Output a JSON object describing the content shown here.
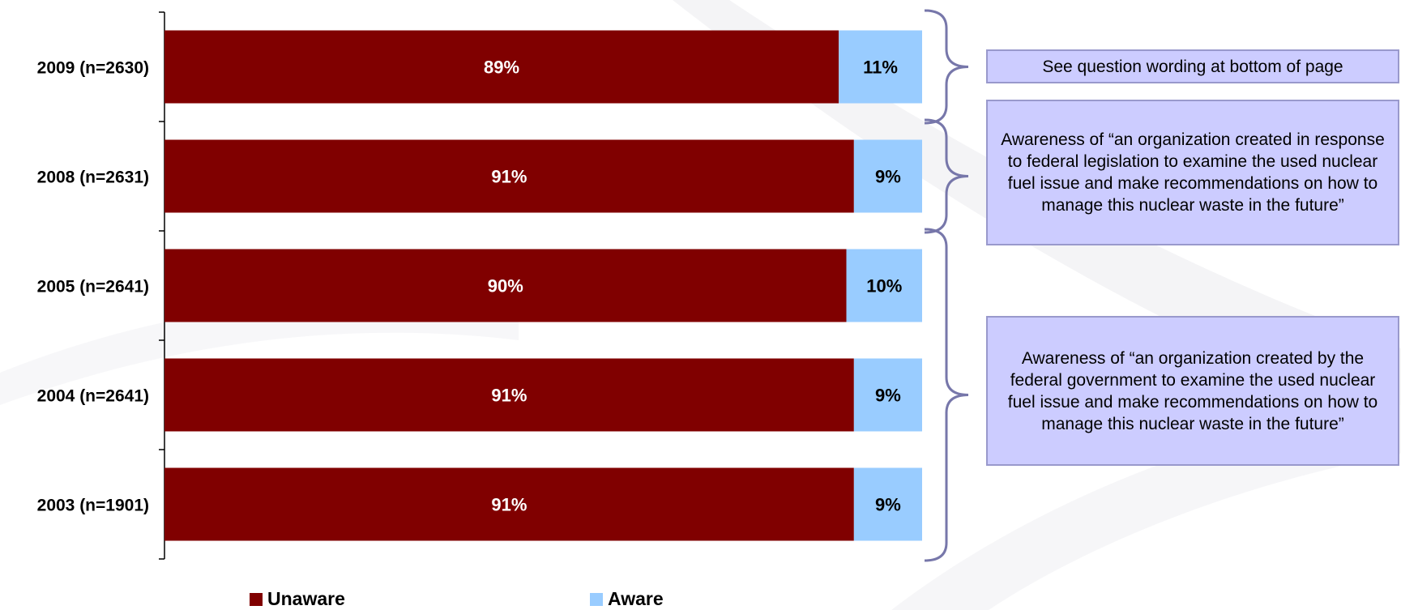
{
  "colors": {
    "unaware": "#800000",
    "aware": "#99ccff",
    "bracket": "#7777aa",
    "note_fill": "#ccccff",
    "note_border": "#9999cc"
  },
  "chart_data": {
    "type": "bar",
    "orientation": "horizontal",
    "stacked": true,
    "categories": [
      "2009 (n=2630)",
      "2008 (n=2631)",
      "2005 (n=2641)",
      "2004 (n=2641)",
      "2003 (n=1901)"
    ],
    "series": [
      {
        "name": "Unaware",
        "values": [
          89,
          91,
          90,
          91,
          91
        ],
        "labels": [
          "89%",
          "91%",
          "90%",
          "91%",
          "91%"
        ]
      },
      {
        "name": "Aware",
        "values": [
          11,
          9,
          10,
          9,
          9
        ],
        "labels": [
          "11%",
          "9%",
          "10%",
          "9%",
          "9%"
        ]
      }
    ],
    "xlim": [
      0,
      100
    ],
    "grid": false,
    "legend": "bottom"
  },
  "notes": [
    {
      "text": "See question wording at bottom of page"
    },
    {
      "text": "Awareness of “an organization created in response to federal legislation to examine the used nuclear fuel issue and make recommendations on how to manage this nuclear waste in the future”"
    },
    {
      "text": "Awareness of “an organization created by the federal government to examine the used nuclear fuel issue and make recommendations on how to manage this nuclear waste in the future”"
    }
  ],
  "legend": {
    "unaware_label": "Unaware",
    "aware_label": "Aware"
  }
}
